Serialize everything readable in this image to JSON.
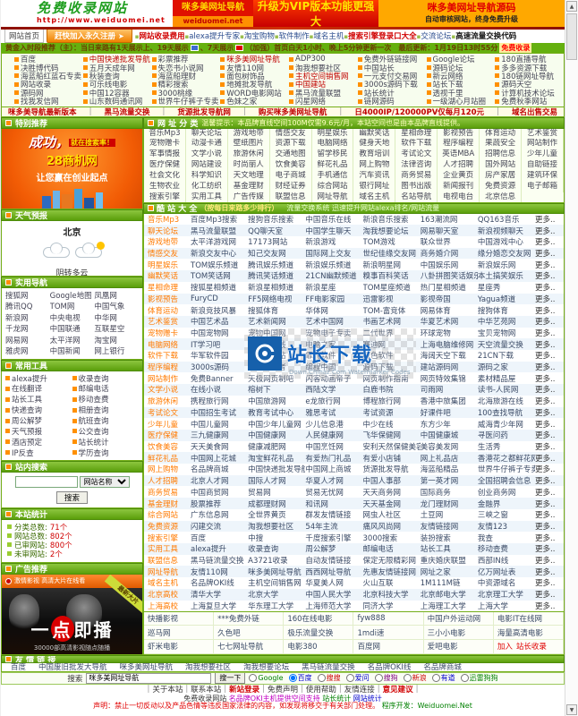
{
  "header": {
    "logo_title": "免费收录网站",
    "logo_url": "http://www.weiduomei.net",
    "banner_mid_title": "咪多美网址导航",
    "banner_mid_sub": "weiduomei.net",
    "banner_vip": "升级为VIP版本功能更强大",
    "banner_src_title": "咪多美网址导航源码",
    "banner_src_sub": "自动审核网站，终身免费升级"
  },
  "nav": {
    "home": "网站首页",
    "join_button": "赶快加入永久注册",
    "items": [
      "网站收录费用",
      "alexa提升专家",
      "淘宝购物",
      "软件制作",
      "域名主机",
      "搜索引擎登录口大全",
      "交流论坛",
      "高速流量交换代码"
    ],
    "red": [
      0,
      5
    ],
    "bold": [
      7
    ]
  },
  "notice": {
    "t1": "黄金入时段推荐（主）：当日来路有1天展示上、19天展示",
    "t2": "、7天展示",
    "t3": "（加强）首页白天1小时、晚上5分钟更新一次　最后更新：1月19日13时55分",
    "link": "免费收录"
  },
  "top_links": {
    "cells": [
      "百度",
      "中国快递批发导航",
      "彩票推荐",
      "咪多美网址导航",
      "ADP300",
      "免费外链链接网",
      "Google论坛",
      "180直播导航",
      "决胜博代码",
      "五月天成年网",
      "失恋书小说网",
      "友情110网",
      "淘我想要社区",
      "中国站长",
      "源码论坛",
      "多多资源下载",
      "海蓝船红蓝石专卖",
      "秋装查询",
      "海蓝船理财",
      "面包树饰品",
      "主机空间销售网",
      "一元支付交易网",
      "新云网络",
      "180链网址导航",
      "网站收录",
      "可乐线电影",
      "精彩搜索",
      "地摊批发导航",
      "中国建站",
      "3000s源码下载",
      "站长下载",
      "源码天空",
      "源码网",
      "中国12容器",
      "3000桃缘",
      "WORD电影网站",
      "黑马流量联盟",
      "站长统计",
      "透视千里",
      "计算机技术论坛",
      "找我发信网",
      "山东数码通讯网",
      "世界牛仔裤子专卖",
      "色妹之家",
      "闪星网络",
      "链网源码",
      "一级湖心月站圈",
      "免费秋季网站"
    ],
    "red": [
      1,
      3,
      20,
      28
    ]
  },
  "promo": [
    "咪多美导航最新版本",
    "黑马流量交换",
    "货源批发导航网",
    "购买咪多美网址导航",
    "日4000IP/120000PV仅每月120元",
    "域名出售交易"
  ],
  "sidebar": {
    "special_title": "特别推荐",
    "ad1": {
      "line1": "成功，",
      "line1b": "就在搜索率！",
      "line2": "28商机网",
      "line3": "让您赢在创业起点"
    },
    "weather": {
      "title": "天气预报",
      "city": "北京",
      "condition": "阴转多云"
    },
    "quicknav": {
      "title": "实用导航",
      "links": [
        "搜狐网",
        "Google地图",
        "凤凰网",
        "腾讯QQ",
        "TOM网",
        "中国气象",
        "新浪网",
        "中央电视",
        "中华网",
        "千龙网",
        "中国联通",
        "互联星空",
        "网易网",
        "太平洋网",
        "淘宝网",
        "雅虎网",
        "中国新闻",
        "网上银行"
      ]
    },
    "tools": {
      "title": "常用工具",
      "links": [
        "alexa提升",
        "收录查询",
        "在线翻译",
        "邮编电话",
        "站长工具",
        "移动查费",
        "快递查询",
        "相册查询",
        "周公解梦",
        "航班查询",
        "天气预报",
        "公交查询",
        "酒店预定",
        "站长统计",
        "IP反查",
        "学历查询"
      ]
    },
    "search": {
      "title": "站内搜索",
      "select": "网站名称",
      "button": "搜索"
    },
    "stats": {
      "title": "本站统计",
      "items": [
        {
          "label": "分类总数:",
          "value": "71个"
        },
        {
          "label": "网站总数:",
          "value": "802个"
        },
        {
          "label": "已审网站:",
          "value": "800个"
        },
        {
          "label": "未审网站:",
          "value": "2个"
        }
      ]
    },
    "ad_title": "广告推荐",
    "ad2": {
      "top": "激情影视 高清大片在线看",
      "ribbon": "最新大片",
      "main_pre": "一",
      "main_dot": "点",
      "main_post": "即播",
      "sub": "30000部高清影视随点随播"
    }
  },
  "categories": {
    "title": "网 址 分 类",
    "notice": "温馨提示：本品牌直线空间100M仅需9.6元/月，本站空间也是由本品牌直线提供。",
    "items": [
      "音乐Mp3",
      "聊天论坛",
      "游戏地带",
      "情感交友",
      "明星娱乐",
      "幽默笑话",
      "星相命理",
      "影视预告",
      "体育运动",
      "艺术鉴赏",
      "宠物赠卡",
      "动漫卡通",
      "壁纸图片",
      "资源下载",
      "电脑网络",
      "健身天地",
      "软件下载",
      "程序编程",
      "果蔬安全",
      "网站制作",
      "军事情报",
      "文学小说",
      "旅游休闲",
      "交通地图",
      "留学移民",
      "教育培训",
      "考试论文",
      "英语MBA",
      "招聘信息",
      "少年儿童",
      "医疗保健",
      "网站建设",
      "时尚丽人",
      "饮食美容",
      "鲜花礼品",
      "网上购物",
      "法律咨询",
      "人才招聘",
      "国外网站",
      "自助链接",
      "社会文化",
      "科学知识",
      "天文地理",
      "电子商城",
      "手机通信",
      "汽车资讯",
      "商务贸易",
      "企业黄页",
      "房产家居",
      "建筑环保",
      "生物农业",
      "化工纺织",
      "基金理财",
      "财经证券",
      "综合网站",
      "银行网址",
      "图书出版",
      "新闻报刊",
      "免费资源",
      "电子邮箱",
      "搜索引擎",
      "实用工具",
      "广告传媒",
      "联盟信息",
      "网址导航",
      "域名主机",
      "名站导航",
      "电视电台",
      "北京信息"
    ]
  },
  "coolsites": {
    "title": "酷 站 大 全",
    "subtitle": "（按每日来路多少排行）",
    "notice": "流量交换系统 迅速提升网站alexa排名/网站流量",
    "more_label": "更多..",
    "rows": [
      {
        "category": "音乐Mp3",
        "links": [
          "百度Mp3搜索",
          "搜狗音乐搜索",
          "中国音乐在线",
          "新浪音乐搜索",
          "163潮流网",
          "QQ163音乐"
        ]
      },
      {
        "category": "聊天论坛",
        "links": [
          "黑马流量联盟",
          "QQ聊天室",
          "中国学生聊天",
          "淘我想要论坛",
          "网易聊天室",
          "新浪视频聊天"
        ]
      },
      {
        "category": "游戏地带",
        "links": [
          "太平洋游戏网",
          "17173网站",
          "新浪游戏",
          "TOM游戏",
          "联众世界",
          "中国游戏中心"
        ]
      },
      {
        "category": "情感交友",
        "links": [
          "新浪交友中心",
          "知己交友网",
          "国际网上交友",
          "世纪佳缘交友网",
          "商务婚介网",
          "缘分婚恋交友网"
        ]
      },
      {
        "category": "明星娱乐",
        "links": [
          "TOM娱乐频道",
          "腾讯娱乐频道",
          "新浪娱乐频道",
          "新浪明星网",
          "中国娱乐网",
          "新浪娱乐网"
        ]
      },
      {
        "category": "幽默笑话",
        "links": [
          "TOM笑话网",
          "腾讯笑话频道",
          "21CN幽默频道",
          "糗事百科笑话",
          "八卦拼图笑话娱乐",
          "本土搞笑娱乐"
        ]
      },
      {
        "category": "星相命理",
        "links": [
          "搜狐星相频道",
          "新浪星相频道",
          "新浪星座",
          "TOM星座频道",
          "热门星相频道",
          "星座秀"
        ]
      },
      {
        "category": "影视预告",
        "links": [
          "FuryCD",
          "FF5网络电视",
          "FF电影家园",
          "迅雷影视",
          "影视帝国",
          "Yagua频道"
        ]
      },
      {
        "category": "体育运动",
        "links": [
          "新浪竞技风暴",
          "搜狐体育",
          "华体网",
          "TOM-富竞体",
          "网易体育",
          "搜狗体育"
        ]
      },
      {
        "category": "艺术鉴赏",
        "links": [
          "中国艺术品",
          "艺术新闻网",
          "艺术中国网",
          "书画艺术网",
          "华夏艺术网",
          "中华艺苑网"
        ]
      },
      {
        "category": "宠物赠卡",
        "links": [
          "中国宠物网",
          "宠物中国网",
          "宠物电子专卖",
          "二代世界",
          "环球宠物",
          "宝贝宠物网"
        ]
      },
      {
        "category": "电脑网络",
        "links": [
          "IT学习吧",
          "中关村在线",
          "电脑之家",
          "赛迪网",
          "上海电脑维修网",
          "天空流量交换"
        ]
      },
      {
        "category": "软件下载",
        "links": [
          "华军软件园",
          "天空软件站",
          "霏凡软件",
          "绿色软件",
          "海阔天空下载",
          "21CN下载"
        ]
      },
      {
        "category": "程序编程",
        "links": [
          "3000s源码",
          "源码爱好者",
          "编程中国",
          "源码下载",
          "建站源码网",
          "源码之家"
        ]
      },
      {
        "category": "网站制作",
        "links": [
          "免费Banner",
          "天极网页制吧",
          "闪客动画帝子",
          "网页制作指南",
          "网页特效集锦",
          "素材精品屋"
        ]
      },
      {
        "category": "文学小说",
        "links": [
          "在线小说",
          "榕树下",
          "西陆文学",
          "白鹿书院",
          "司雨网",
          "读书-人民网"
        ]
      },
      {
        "category": "旅游休闲",
        "links": [
          "携程旅行网",
          "中国旅游网",
          "e龙旅行网",
          "博程旅行网",
          "香港中旅集团",
          "北海旅游在线"
        ]
      },
      {
        "category": "考试论文",
        "links": [
          "中国招生考试",
          "教育考试中心",
          "雅思考试",
          "考试资源",
          "好课件吧",
          "100查找导航"
        ]
      },
      {
        "category": "少年儿童",
        "links": [
          "中国儿童网",
          "中国少年儿童网",
          "少儿信息港",
          "中少在线",
          "东方少年",
          "威海青少年网"
        ]
      },
      {
        "category": "医疗保健",
        "links": [
          "三九健康网",
          "中国健康网",
          "人民健康网",
          "飞华保健网",
          "中国健康城",
          "寻医问药"
        ]
      },
      {
        "category": "饮食美容",
        "links": [
          "天天美食网",
          "健康减肥网",
          "中国烹饪网",
          "安利天然保健美容",
          "美容美发网",
          "生活秀"
        ]
      },
      {
        "category": "鲜花礼品",
        "links": [
          "中国网上花城",
          "淘宝鲜花礼品",
          "有爱热门礼品",
          "有爱小店铺",
          "网上礼品店",
          "香港花之都鲜花网"
        ]
      },
      {
        "category": "网上购物",
        "links": [
          "名品牌商城",
          "中国快递批发导航",
          "中国网上商城",
          "货源批发导航",
          "海蓝船精品",
          "世界牛仔裤子专卖"
        ]
      },
      {
        "category": "人才招聘",
        "links": [
          "北京人才网",
          "国际人才网",
          "华夏人才网",
          "中国人事部",
          "第一英才网",
          "全国招聘会信息"
        ]
      },
      {
        "category": "商务贸易",
        "links": [
          "中国商贸网",
          "贸易网",
          "贸易无忧网",
          "天天商务网",
          "国际商务",
          "创业商务网"
        ]
      },
      {
        "category": "基金理财",
        "links": [
          "股票推荐",
          "成都理财网",
          "和讯网",
          "天天基金网",
          "龙门理财网",
          "金融界"
        ]
      },
      {
        "category": "综合网站",
        "links": [
          "广东信息网",
          "全世界黄页",
          "群发友情链接",
          "网虫人社区",
          "土豆网",
          "三峡之窗"
        ]
      },
      {
        "category": "免费资源",
        "links": [
          "闪建交流",
          "淘我想要社区",
          "54年主流",
          "痛风风尚网",
          "友情链接网",
          "友情123"
        ]
      },
      {
        "category": "搜索引擎",
        "links": [
          "百度",
          "中搜",
          "千度搜索引擎",
          "3000搜索",
          "装扮搜索",
          "我查"
        ]
      },
      {
        "category": "实用工具",
        "links": [
          "alexa提升",
          "收录查询",
          "周公解梦",
          "邮编电话",
          "站长工具",
          "移动查费"
        ]
      },
      {
        "category": "联盟信息",
        "links": [
          "黑马链流量交换",
          "A3721收录",
          "自动友情链接",
          "保定无限精彩网",
          "重庆婚庆联盟",
          "西部IN线"
        ]
      },
      {
        "category": "网址导航",
        "links": [
          "友情110网",
          "咪多美网址导航",
          "西西网址导航",
          "先惠友情链接网",
          "网址之家",
          "亿万网址表"
        ]
      },
      {
        "category": "域名主机",
        "links": [
          "名品牌OKI线",
          "主机空间销售网",
          "华夏美人网",
          "火山互联",
          "1M111M链",
          "中资源域名"
        ]
      },
      {
        "category": "北京高校",
        "links": [
          "清华大学",
          "北京大学",
          "中国人民大学",
          "北京科技大学",
          "北京邮电大学",
          "北京理工大学"
        ]
      },
      {
        "category": "上海高校",
        "links": [
          "上海复旦大学",
          "华东理工大学",
          "上海师范大学",
          "同济大学",
          "上海理工大学",
          "上海大学"
        ]
      }
    ]
  },
  "watermark": {
    "text": "站长下载",
    "sub": "Down.Chinaz.Com Watermarker Codes"
  },
  "friend_box": {
    "rows": [
      [
        "快播影视",
        "***免费外链",
        "160在线电影",
        "fyw888",
        "中国户外运动网",
        "电影IT在线网"
      ],
      [
        "巡马网",
        "久色吧",
        "极乐流量交换",
        "1mdi速",
        "三小小电影",
        "海量高清电影"
      ],
      [
        "虾米电影",
        "七七网址导航",
        "电影380",
        "百度网",
        "爱吧电影",
        "加入 站长收录"
      ]
    ],
    "red_cells": [
      [
        2,
        5
      ]
    ]
  },
  "friend_links": {
    "title": "友 情 链 接",
    "links": [
      "百度",
      "中国废旧批发大导航",
      "咪多美网址导航",
      "淘我想要社区",
      "淘我想要论坛",
      "黑马链流量交换",
      "名品牌OKI线",
      "名品牌商城"
    ]
  },
  "footer_search": {
    "label": "搜索",
    "value": "咪多美网址导航",
    "button": "搜一下",
    "engines": [
      {
        "name": "Google",
        "checked": false,
        "color": "#008000"
      },
      {
        "name": "百度",
        "checked": true,
        "color": "#0000cc"
      },
      {
        "name": "搜搜",
        "checked": false,
        "color": "#cc0000"
      },
      {
        "name": "爱问",
        "checked": false,
        "color": "#0000cc"
      },
      {
        "name": "搜狗",
        "checked": false,
        "color": "#800080"
      },
      {
        "name": "新浪",
        "checked": false,
        "color": "#cc0000"
      },
      {
        "name": "有道",
        "checked": false,
        "color": "#0000cc"
      },
      {
        "name": "迅雷狗狗",
        "checked": false,
        "color": "#008000"
      }
    ]
  },
  "footer": {
    "links": [
      "关于本站",
      "联系本站",
      "新站登录",
      "免费声明",
      "使用帮助",
      "友情连接",
      "意见建议"
    ],
    "red": [
      2,
      6
    ],
    "line2": {
      "p1": "免费收录网站",
      "p2": "名品牌OKI主机提供空间支持",
      "p3": "站长统计",
      "p4": "网站统计"
    },
    "line3": "声明：禁止一切反动以及产品色情等违反国家法律的内容，如发现将移交于有关部门处理。",
    "line3_dev": "程序开发：Weiduomei.Net"
  },
  "colors": {
    "accent_green": "#66b10e",
    "accent_orange": "#ff8c00",
    "alert_red": "#e60000",
    "link_blue": "#3a4a66"
  }
}
